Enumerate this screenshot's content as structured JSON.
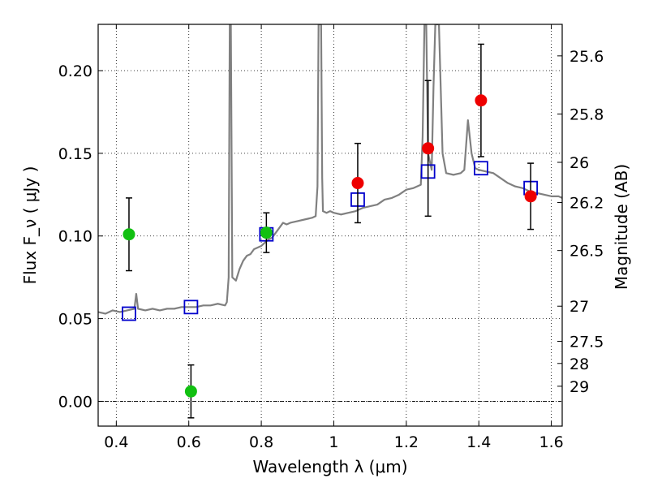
{
  "chart_data": {
    "type": "scatter",
    "xlabel": "Wavelength  λ (μm)",
    "ylabel_left": "Flux  F_ν  ( μJy )",
    "ylabel_right": "Magnitude (AB)",
    "xlim": [
      0.35,
      1.63
    ],
    "ylim": [
      -0.015,
      0.228
    ],
    "grid": true,
    "x_ticks": [
      0.4,
      0.6,
      0.8,
      1.0,
      1.2,
      1.4,
      1.6
    ],
    "x_tick_labels": [
      "0.4",
      "0.6",
      "0.8",
      "1",
      "1.2",
      "1.4",
      "1.6"
    ],
    "y_ticks": [
      0.0,
      0.05,
      0.1,
      0.15,
      0.2
    ],
    "y_tick_labels": [
      "0.00",
      "0.05",
      "0.10",
      "0.15",
      "0.20"
    ],
    "right_ticks": [
      {
        "label": "25.6",
        "mag": 25.6
      },
      {
        "label": "25.8",
        "mag": 25.8
      },
      {
        "label": "26",
        "mag": 26.0
      },
      {
        "label": "26.2",
        "mag": 26.2
      },
      {
        "label": "26.5",
        "mag": 26.5
      },
      {
        "label": "27",
        "mag": 27.0
      },
      {
        "label": "27.5",
        "mag": 27.5
      },
      {
        "label": "28",
        "mag": 28.0
      },
      {
        "label": "29",
        "mag": 29.0
      }
    ],
    "colors": {
      "template": "#808080",
      "model": "#0000cc",
      "green_points": "#11c011",
      "red_points": "#ee0000",
      "errorbar": "#000000",
      "zero_line": "#000000"
    },
    "series": [
      {
        "marker": "green-circle",
        "points": [
          {
            "x": 0.435,
            "y": 0.101,
            "yerr": 0.022
          },
          {
            "x": 0.606,
            "y": 0.006,
            "yerr": 0.016
          },
          {
            "x": 0.814,
            "y": 0.102,
            "yerr": 0.012
          }
        ]
      },
      {
        "marker": "red-circle",
        "points": [
          {
            "x": 1.066,
            "y": 0.132,
            "yerr": 0.024
          },
          {
            "x": 1.26,
            "y": 0.153,
            "yerr": 0.041
          },
          {
            "x": 1.406,
            "y": 0.182,
            "yerr": 0.034
          },
          {
            "x": 1.543,
            "y": 0.124,
            "yerr": 0.02
          }
        ]
      },
      {
        "marker": "blue-open-square",
        "points": [
          {
            "x": 0.435,
            "y": 0.053
          },
          {
            "x": 0.606,
            "y": 0.057
          },
          {
            "x": 0.814,
            "y": 0.101
          },
          {
            "x": 1.066,
            "y": 0.122
          },
          {
            "x": 1.26,
            "y": 0.139
          },
          {
            "x": 1.406,
            "y": 0.141
          },
          {
            "x": 1.543,
            "y": 0.129
          }
        ]
      },
      {
        "marker": "gray-line",
        "points": [
          [
            0.35,
            0.054
          ],
          [
            0.37,
            0.053
          ],
          [
            0.39,
            0.055
          ],
          [
            0.41,
            0.054
          ],
          [
            0.43,
            0.055
          ],
          [
            0.45,
            0.056
          ],
          [
            0.455,
            0.065
          ],
          [
            0.46,
            0.056
          ],
          [
            0.48,
            0.055
          ],
          [
            0.5,
            0.056
          ],
          [
            0.52,
            0.055
          ],
          [
            0.54,
            0.056
          ],
          [
            0.56,
            0.056
          ],
          [
            0.58,
            0.057
          ],
          [
            0.6,
            0.057
          ],
          [
            0.62,
            0.057
          ],
          [
            0.64,
            0.058
          ],
          [
            0.66,
            0.058
          ],
          [
            0.68,
            0.059
          ],
          [
            0.7,
            0.058
          ],
          [
            0.705,
            0.06
          ],
          [
            0.71,
            0.075
          ],
          [
            0.713,
            0.228
          ],
          [
            0.716,
            0.228
          ],
          [
            0.72,
            0.075
          ],
          [
            0.73,
            0.073
          ],
          [
            0.74,
            0.08
          ],
          [
            0.75,
            0.085
          ],
          [
            0.76,
            0.088
          ],
          [
            0.77,
            0.089
          ],
          [
            0.78,
            0.092
          ],
          [
            0.79,
            0.093
          ],
          [
            0.8,
            0.094
          ],
          [
            0.81,
            0.096
          ],
          [
            0.82,
            0.098
          ],
          [
            0.83,
            0.099
          ],
          [
            0.84,
            0.102
          ],
          [
            0.85,
            0.105
          ],
          [
            0.86,
            0.108
          ],
          [
            0.87,
            0.107
          ],
          [
            0.88,
            0.108
          ],
          [
            0.9,
            0.109
          ],
          [
            0.92,
            0.11
          ],
          [
            0.94,
            0.111
          ],
          [
            0.95,
            0.112
          ],
          [
            0.955,
            0.13
          ],
          [
            0.958,
            0.228
          ],
          [
            0.965,
            0.228
          ],
          [
            0.968,
            0.135
          ],
          [
            0.97,
            0.115
          ],
          [
            0.98,
            0.114
          ],
          [
            0.99,
            0.115
          ],
          [
            1.0,
            0.114
          ],
          [
            1.02,
            0.113
          ],
          [
            1.04,
            0.114
          ],
          [
            1.06,
            0.115
          ],
          [
            1.08,
            0.117
          ],
          [
            1.1,
            0.118
          ],
          [
            1.12,
            0.119
          ],
          [
            1.14,
            0.122
          ],
          [
            1.16,
            0.123
          ],
          [
            1.18,
            0.125
          ],
          [
            1.2,
            0.128
          ],
          [
            1.22,
            0.129
          ],
          [
            1.24,
            0.131
          ],
          [
            1.245,
            0.16
          ],
          [
            1.25,
            0.228
          ],
          [
            1.255,
            0.228
          ],
          [
            1.26,
            0.15
          ],
          [
            1.27,
            0.14
          ],
          [
            1.275,
            0.19
          ],
          [
            1.28,
            0.228
          ],
          [
            1.29,
            0.228
          ],
          [
            1.3,
            0.15
          ],
          [
            1.31,
            0.138
          ],
          [
            1.33,
            0.137
          ],
          [
            1.35,
            0.138
          ],
          [
            1.36,
            0.14
          ],
          [
            1.37,
            0.17
          ],
          [
            1.38,
            0.15
          ],
          [
            1.39,
            0.141
          ],
          [
            1.4,
            0.14
          ],
          [
            1.42,
            0.139
          ],
          [
            1.44,
            0.138
          ],
          [
            1.46,
            0.135
          ],
          [
            1.48,
            0.132
          ],
          [
            1.5,
            0.13
          ],
          [
            1.52,
            0.129
          ],
          [
            1.54,
            0.127
          ],
          [
            1.56,
            0.126
          ],
          [
            1.58,
            0.125
          ],
          [
            1.6,
            0.124
          ],
          [
            1.62,
            0.124
          ],
          [
            1.63,
            0.123
          ]
        ]
      }
    ]
  }
}
